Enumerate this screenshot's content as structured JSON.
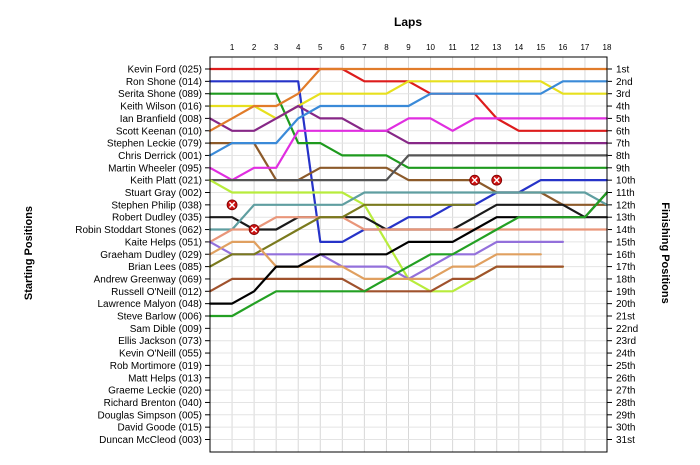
{
  "chart_data": {
    "type": "line",
    "title": "Laps",
    "ylabel_left": "Starting Positions",
    "ylabel_right": "Finishing Positions",
    "grid": true,
    "x_ticks": [
      1,
      2,
      3,
      4,
      5,
      6,
      7,
      8,
      9,
      10,
      11,
      12,
      13,
      14,
      15,
      16,
      17,
      18
    ],
    "xlim": [
      0,
      18
    ],
    "ylim": [
      1,
      31
    ],
    "start_labels": [
      "Kevin Ford (025)",
      "Ron Shone (014)",
      "Serita Shone (089)",
      "Keith Wilson (016)",
      "Ian Branfield (008)",
      "Scott Keenan (010)",
      "Stephen Leckie (079)",
      "Chris Derrick (001)",
      "Martin Wheeler (095)",
      "Keith Platt (021)",
      "Stuart Gray (002)",
      "Stephen Philip (038)",
      "Robert Dudley (035)",
      "Robin Stoddart Stones (062)",
      "Kaite Helps (051)",
      "Graeham Dudley (029)",
      "Brian Lees (085)",
      "Andrew Greenway (069)",
      "Russell O'Neill (012)",
      "Lawrence Malyon (048)",
      "Steve Barlow (006)",
      "Sam Dible (009)",
      "Ellis Jackson (073)",
      "Kevin O'Neill (055)",
      "Rob Mortimore (019)",
      "Matt Helps (013)",
      "Graeme Leckie (020)",
      "Richard Brenton (040)",
      "Douglas Simpson (005)",
      "David Goode (015)",
      "Duncan McCleod (003)"
    ],
    "finish_labels": [
      "1st",
      "2nd",
      "3rd",
      "4th",
      "5th",
      "6th",
      "7th",
      "8th",
      "9th",
      "10th",
      "11th",
      "12th",
      "13th",
      "14th",
      "15th",
      "16th",
      "17th",
      "18th",
      "19th",
      "20th",
      "21st",
      "22nd",
      "23rd",
      "24th",
      "25th",
      "26th",
      "27th",
      "28th",
      "29th",
      "30th",
      "31st"
    ],
    "series": [
      {
        "color": "#dd1c1c",
        "positions": [
          1,
          1,
          1,
          1,
          1,
          1,
          1,
          2,
          2,
          2,
          3,
          3,
          3,
          5,
          6,
          6,
          6,
          6,
          6
        ]
      },
      {
        "color": "#2633c8",
        "positions": [
          2,
          2,
          2,
          2,
          2,
          15,
          15,
          14,
          14,
          13,
          13,
          12,
          12,
          11,
          11,
          10,
          10,
          10,
          10
        ]
      },
      {
        "color": "#1e9a1e",
        "positions": [
          3,
          3,
          3,
          3,
          7,
          7,
          8,
          8,
          8,
          9,
          9,
          9,
          9,
          9,
          9,
          9,
          9,
          9,
          9
        ]
      },
      {
        "color": "#e7e01e",
        "positions": [
          4,
          4,
          4,
          5,
          4,
          3,
          3,
          3,
          3,
          2,
          2,
          2,
          2,
          2,
          2,
          2,
          3,
          3,
          3
        ]
      },
      {
        "color": "#872887",
        "positions": [
          5,
          6,
          6,
          5,
          4,
          5,
          5,
          6,
          6,
          7,
          7,
          7,
          7,
          7,
          7,
          7,
          7,
          7,
          7
        ]
      },
      {
        "color": "#e17c2a",
        "positions": [
          6,
          5,
          4,
          4,
          3,
          1,
          1,
          1,
          1,
          1,
          1,
          1,
          1,
          1,
          1,
          1,
          1,
          1,
          1
        ]
      },
      {
        "color": "#8c5a2a",
        "positions": [
          7,
          7,
          7,
          10,
          10,
          9,
          9,
          9,
          9,
          10,
          10,
          10,
          10,
          11,
          11,
          11,
          12,
          12,
          12
        ]
      },
      {
        "color": "#3a8ad8",
        "positions": [
          8,
          7,
          7,
          7,
          5,
          4,
          4,
          4,
          4,
          4,
          3,
          3,
          3,
          3,
          3,
          3,
          2,
          2,
          2
        ]
      },
      {
        "color": "#e02ee0",
        "positions": [
          9,
          10,
          9,
          9,
          6,
          6,
          6,
          6,
          6,
          5,
          5,
          6,
          5,
          5,
          5,
          5,
          5,
          5,
          5
        ]
      },
      {
        "color": "#555555",
        "positions": [
          10,
          10,
          10,
          10,
          10,
          10,
          10,
          10,
          10,
          8,
          8,
          8,
          8,
          8,
          8,
          8,
          8,
          8,
          8
        ]
      },
      {
        "color": "#b8ec3c",
        "positions": [
          10,
          11,
          11,
          11,
          11,
          11,
          11,
          12,
          15,
          18,
          19,
          19,
          18,
          17,
          17,
          17,
          17,
          null,
          null
        ]
      },
      {
        "color": "#1a1a1a",
        "positions": [
          13,
          13,
          14,
          14,
          13,
          13,
          13,
          13,
          14,
          14,
          14,
          14,
          13,
          12,
          12,
          12,
          12,
          13,
          13
        ]
      },
      {
        "color": "#5f9ea0",
        "positions": [
          14,
          14,
          12,
          12,
          12,
          12,
          12,
          11,
          11,
          11,
          11,
          11,
          11,
          11,
          11,
          11,
          11,
          11,
          12
        ]
      },
      {
        "color": "#e9967a",
        "positions": [
          15,
          14,
          14,
          13,
          13,
          13,
          13,
          14,
          14,
          14,
          14,
          14,
          14,
          14,
          14,
          14,
          14,
          14,
          14
        ]
      },
      {
        "color": "#9370db",
        "positions": [
          15,
          16,
          16,
          16,
          16,
          16,
          17,
          17,
          17,
          18,
          17,
          16,
          16,
          15,
          15,
          15,
          15,
          null,
          null
        ]
      },
      {
        "color": "#7a7a1e",
        "positions": [
          17,
          16,
          16,
          15,
          14,
          13,
          13,
          12,
          12,
          12,
          12,
          12,
          12,
          null,
          null,
          null,
          null,
          null,
          null
        ]
      },
      {
        "color": "#e0a060",
        "positions": [
          16,
          15,
          15,
          17,
          17,
          17,
          17,
          18,
          18,
          18,
          18,
          17,
          17,
          16,
          16,
          16,
          null,
          null,
          null
        ]
      },
      {
        "color": "#a0522d",
        "positions": [
          19,
          18,
          18,
          18,
          18,
          18,
          18,
          19,
          19,
          19,
          19,
          18,
          18,
          17,
          17,
          17,
          17,
          null,
          null
        ]
      },
      {
        "color": "#000000",
        "positions": [
          20,
          20,
          19,
          17,
          17,
          16,
          16,
          16,
          16,
          15,
          15,
          15,
          14,
          13,
          13,
          13,
          13,
          13,
          11
        ]
      },
      {
        "color": "#23a023",
        "positions": [
          21,
          21,
          20,
          19,
          19,
          19,
          19,
          19,
          18,
          17,
          16,
          16,
          15,
          14,
          13,
          13,
          13,
          13,
          11
        ]
      }
    ],
    "retired_marks": [
      {
        "lap": 1,
        "position": 12
      },
      {
        "lap": 2,
        "position": 14
      },
      {
        "lap": 12,
        "position": 10
      },
      {
        "lap": 13,
        "position": 10
      }
    ]
  }
}
